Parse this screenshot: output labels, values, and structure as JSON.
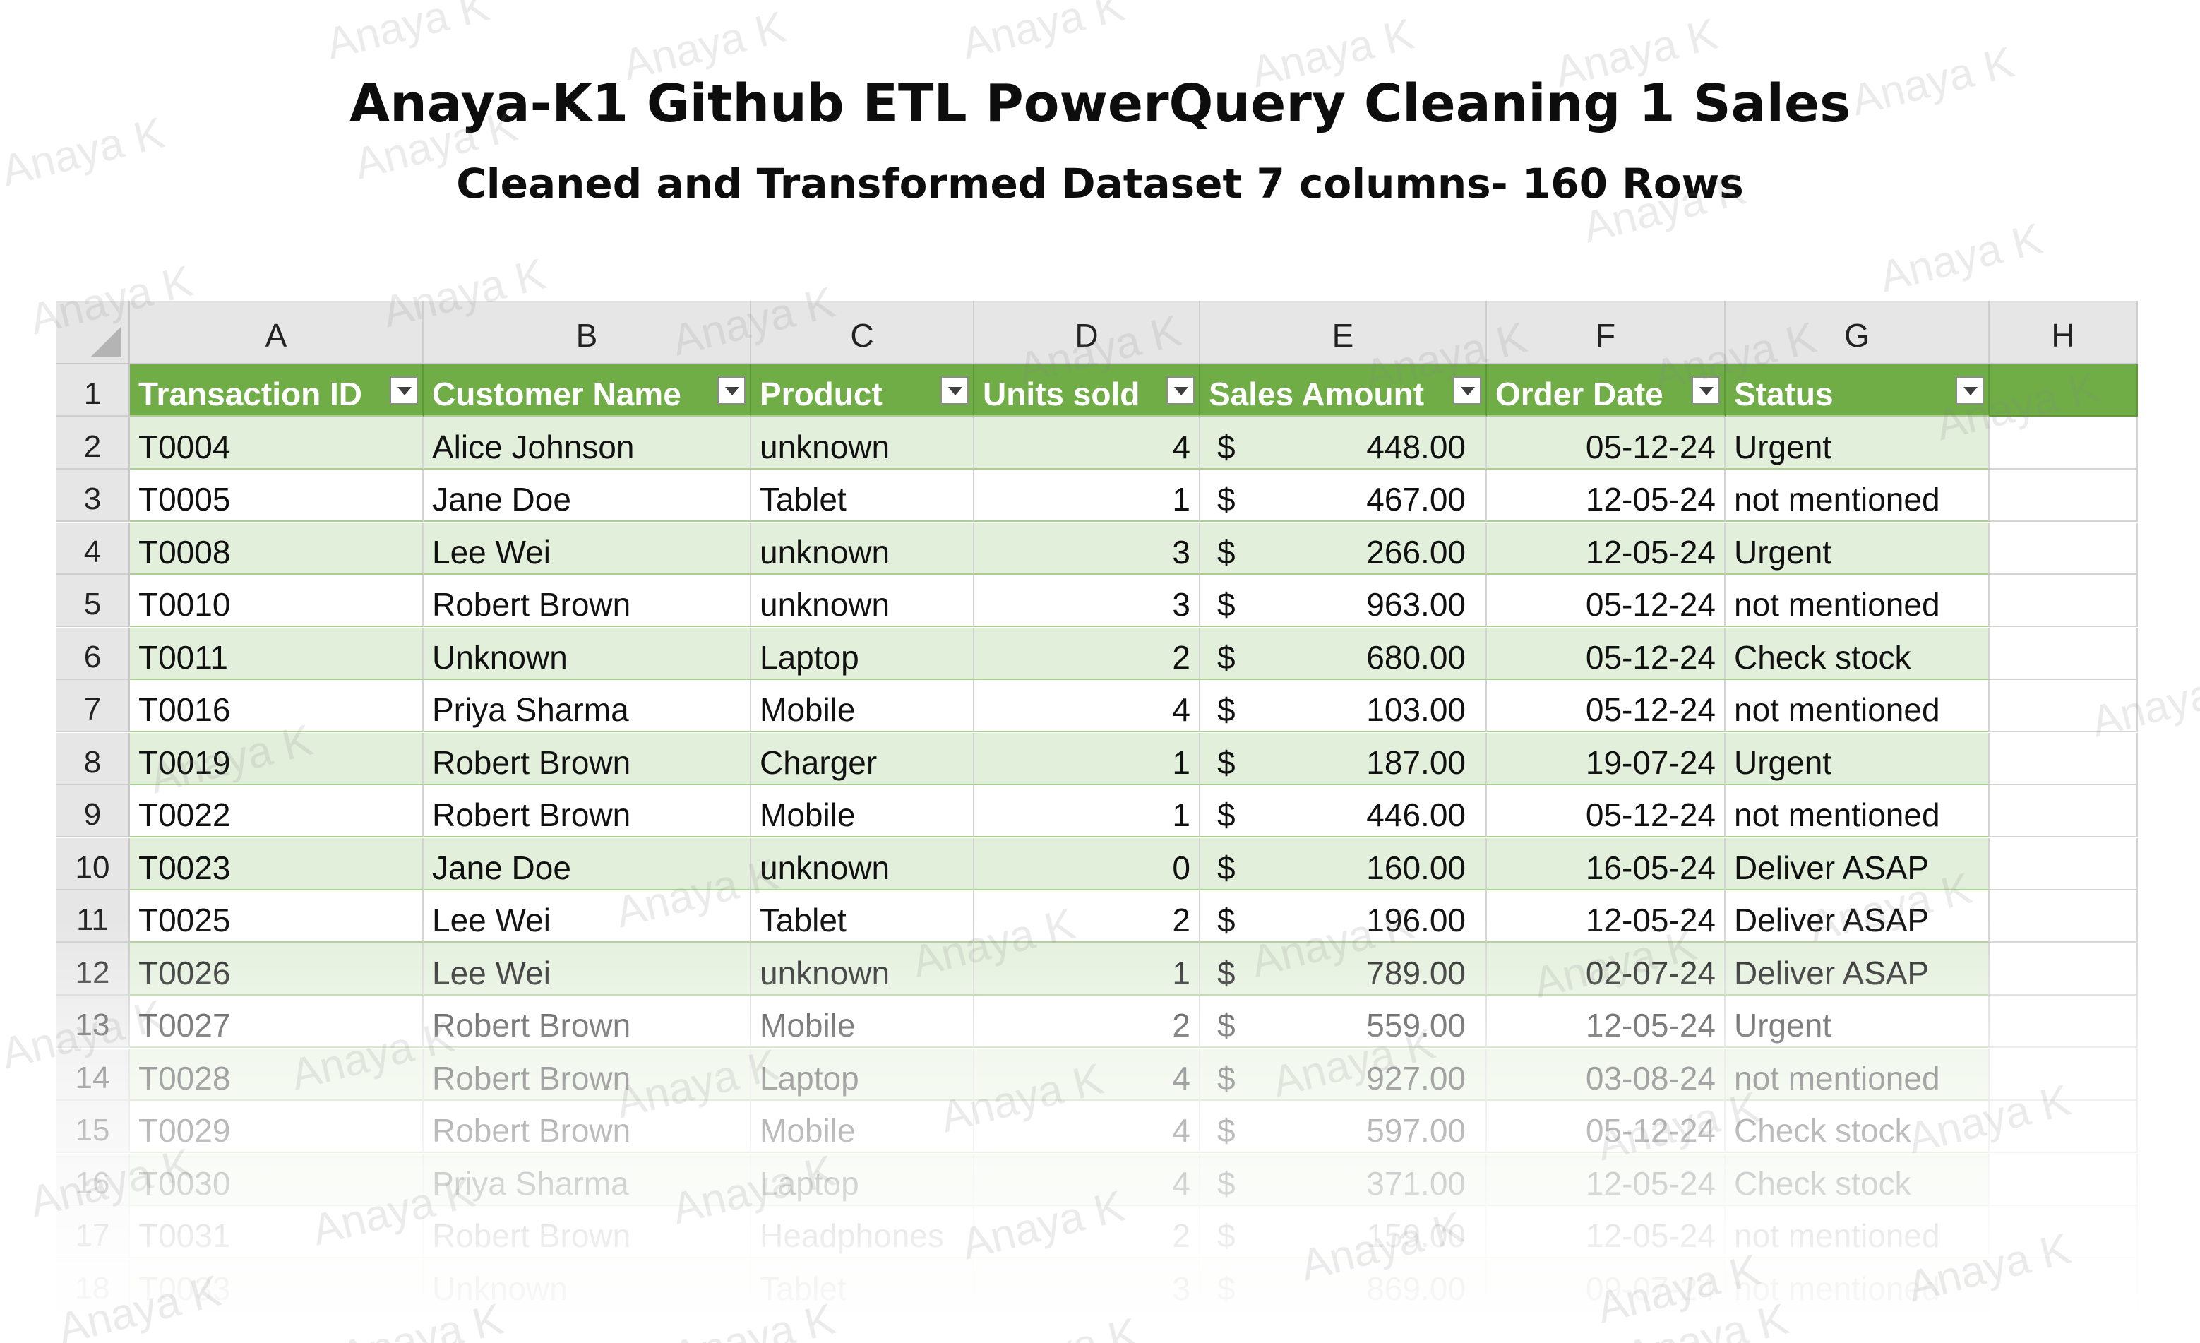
{
  "title": "Anaya-K1 Github ETL PowerQuery Cleaning 1 Sales",
  "subtitle": "Cleaned and Transformed Dataset 7 columns- 160 Rows",
  "watermark": "Anaya K",
  "columns": [
    "A",
    "B",
    "C",
    "D",
    "E",
    "F",
    "G",
    "H"
  ],
  "headers": [
    "Transaction ID",
    "Customer Name",
    "Product",
    "Units sold",
    "Sales Amount",
    "Order Date",
    "Status"
  ],
  "header_row_number": "1",
  "rows": [
    {
      "n": "2",
      "id": "T0004",
      "customer": "Alice Johnson",
      "product": "unknown",
      "units": "4",
      "currency": "$",
      "amount": "448.00",
      "date": "05-12-24",
      "status": "Urgent"
    },
    {
      "n": "3",
      "id": "T0005",
      "customer": "Jane Doe",
      "product": "Tablet",
      "units": "1",
      "currency": "$",
      "amount": "467.00",
      "date": "12-05-24",
      "status": "not mentioned"
    },
    {
      "n": "4",
      "id": "T0008",
      "customer": "Lee Wei",
      "product": "unknown",
      "units": "3",
      "currency": "$",
      "amount": "266.00",
      "date": "12-05-24",
      "status": "Urgent"
    },
    {
      "n": "5",
      "id": "T0010",
      "customer": "Robert Brown",
      "product": "unknown",
      "units": "3",
      "currency": "$",
      "amount": "963.00",
      "date": "05-12-24",
      "status": "not mentioned"
    },
    {
      "n": "6",
      "id": "T0011",
      "customer": "Unknown",
      "product": "Laptop",
      "units": "2",
      "currency": "$",
      "amount": "680.00",
      "date": "05-12-24",
      "status": "Check stock"
    },
    {
      "n": "7",
      "id": "T0016",
      "customer": "Priya Sharma",
      "product": "Mobile",
      "units": "4",
      "currency": "$",
      "amount": "103.00",
      "date": "05-12-24",
      "status": "not mentioned"
    },
    {
      "n": "8",
      "id": "T0019",
      "customer": "Robert Brown",
      "product": "Charger",
      "units": "1",
      "currency": "$",
      "amount": "187.00",
      "date": "19-07-24",
      "status": "Urgent"
    },
    {
      "n": "9",
      "id": "T0022",
      "customer": "Robert Brown",
      "product": "Mobile",
      "units": "1",
      "currency": "$",
      "amount": "446.00",
      "date": "05-12-24",
      "status": "not mentioned"
    },
    {
      "n": "10",
      "id": "T0023",
      "customer": "Jane Doe",
      "product": "unknown",
      "units": "0",
      "currency": "$",
      "amount": "160.00",
      "date": "16-05-24",
      "status": "Deliver ASAP"
    },
    {
      "n": "11",
      "id": "T0025",
      "customer": "Lee Wei",
      "product": "Tablet",
      "units": "2",
      "currency": "$",
      "amount": "196.00",
      "date": "12-05-24",
      "status": "Deliver ASAP"
    },
    {
      "n": "12",
      "id": "T0026",
      "customer": "Lee Wei",
      "product": "unknown",
      "units": "1",
      "currency": "$",
      "amount": "789.00",
      "date": "02-07-24",
      "status": "Deliver ASAP"
    },
    {
      "n": "13",
      "id": "T0027",
      "customer": "Robert Brown",
      "product": "Mobile",
      "units": "2",
      "currency": "$",
      "amount": "559.00",
      "date": "12-05-24",
      "status": "Urgent"
    },
    {
      "n": "14",
      "id": "T0028",
      "customer": "Robert Brown",
      "product": "Laptop",
      "units": "4",
      "currency": "$",
      "amount": "927.00",
      "date": "03-08-24",
      "status": "not mentioned"
    },
    {
      "n": "15",
      "id": "T0029",
      "customer": "Robert Brown",
      "product": "Mobile",
      "units": "4",
      "currency": "$",
      "amount": "597.00",
      "date": "05-12-24",
      "status": "Check stock"
    },
    {
      "n": "16",
      "id": "T0030",
      "customer": "Priya Sharma",
      "product": "Laptop",
      "units": "4",
      "currency": "$",
      "amount": "371.00",
      "date": "12-05-24",
      "status": "Check stock"
    },
    {
      "n": "17",
      "id": "T0031",
      "customer": "Robert Brown",
      "product": "Headphones",
      "units": "2",
      "currency": "$",
      "amount": "159.00",
      "date": "12-05-24",
      "status": "not mentioned"
    },
    {
      "n": "18",
      "id": "T0033",
      "customer": "Unknown",
      "product": "Tablet",
      "units": "3",
      "currency": "$",
      "amount": "869.00",
      "date": "09-07-24",
      "status": "not mentioned"
    }
  ],
  "colors": {
    "header_green": "#70ad47",
    "band_green": "#e2efda",
    "sheet_header_gray": "#e6e6e6"
  }
}
